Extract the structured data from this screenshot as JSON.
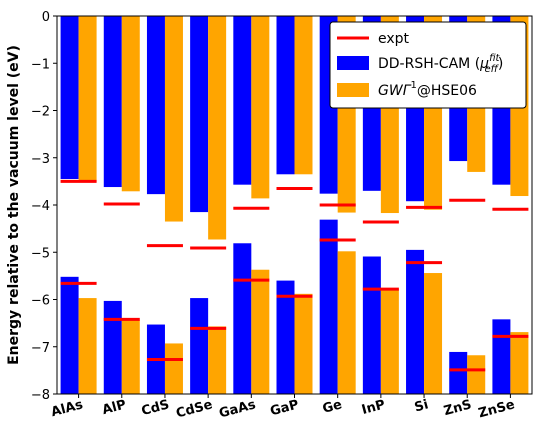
{
  "chart_data": {
    "type": "bar",
    "ylabel": "Energy relative to the vacuum level (eV)",
    "ylim": [
      -8,
      0
    ],
    "yticks": [
      0,
      -1,
      -2,
      -3,
      -4,
      -5,
      -6,
      -7,
      -8
    ],
    "ytick_labels": [
      "0",
      "−1",
      "−2",
      "−3",
      "−4",
      "−5",
      "−6",
      "−7",
      "−8"
    ],
    "categories": [
      "AlAs",
      "AlP",
      "CdS",
      "CdSe",
      "GaAs",
      "GaP",
      "Ge",
      "InP",
      "Si",
      "ZnS",
      "ZnSe"
    ],
    "legend_position": "top-right",
    "legend": {
      "expt": "expt",
      "dd_prefix": "DD-RSH-CAM (",
      "dd_mu": "μ",
      "dd_sub": "eff",
      "dd_sup": "fit",
      "dd_suffix": ")",
      "gw_a": "GW",
      "gw_b": "Γ",
      "gw_sup": "1",
      "gw_c": "@HSE06"
    },
    "colors": {
      "dd": "#0000ff",
      "gw": "#ffa500",
      "expt": "#ff0000"
    },
    "series": [
      {
        "name": "DD-RSH-CAM",
        "cbm": [
          -3.45,
          -3.62,
          -3.77,
          -4.15,
          -3.57,
          -3.35,
          -3.76,
          -3.7,
          -3.92,
          -3.07,
          -3.57
        ],
        "vbm": [
          -5.52,
          -6.03,
          -6.53,
          -5.97,
          -4.81,
          -5.6,
          -4.31,
          -5.09,
          -4.95,
          -7.11,
          -6.42
        ]
      },
      {
        "name": "GWΓ¹@HSE06",
        "cbm": [
          -3.51,
          -3.71,
          -4.35,
          -4.73,
          -3.86,
          -3.35,
          -4.16,
          -4.17,
          -4.1,
          -3.3,
          -3.81
        ],
        "vbm": [
          -5.97,
          -6.43,
          -6.93,
          -6.57,
          -5.37,
          -5.88,
          -4.98,
          -5.78,
          -5.44,
          -7.18,
          -6.69
        ]
      },
      {
        "name": "expt",
        "cbm": [
          -3.5,
          -3.98,
          -4.86,
          -4.91,
          -4.07,
          -3.65,
          -4.0,
          -4.36,
          -4.05,
          -3.9,
          -4.09
        ],
        "vbm": [
          -5.66,
          -6.42,
          -7.27,
          -6.61,
          -5.59,
          -5.93,
          -4.74,
          -5.78,
          -5.22,
          -7.49,
          -6.78
        ]
      }
    ]
  }
}
